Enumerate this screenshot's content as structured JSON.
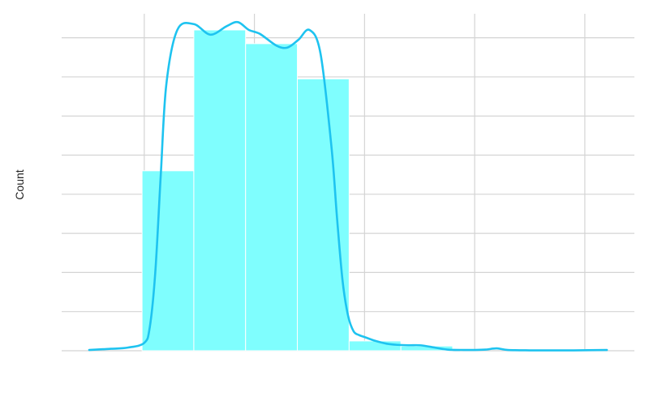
{
  "chart_data": {
    "type": "bar",
    "title": "",
    "xlabel": "",
    "ylabel": "Count",
    "x_ticks": [
      0,
      1,
      2,
      3,
      4
    ],
    "xlim": [
      -0.75,
      4.45
    ],
    "y_gridlines": [
      0,
      1,
      2,
      3,
      4,
      5,
      6,
      7,
      8
    ],
    "ylim": [
      0,
      8.8
    ],
    "grid": true,
    "bars": [
      {
        "x0": -0.02,
        "x1": 0.45,
        "value": 4.6
      },
      {
        "x0": 0.45,
        "x1": 0.92,
        "value": 8.2
      },
      {
        "x0": 0.92,
        "x1": 1.39,
        "value": 7.85
      },
      {
        "x0": 1.39,
        "x1": 1.86,
        "value": 6.95
      },
      {
        "x0": 1.86,
        "x1": 2.33,
        "value": 0.25
      },
      {
        "x0": 2.33,
        "x1": 2.8,
        "value": 0.12
      }
    ],
    "kde": {
      "x": [
        -0.5,
        -0.3,
        -0.15,
        0.0,
        0.05,
        0.1,
        0.15,
        0.2,
        0.3,
        0.45,
        0.6,
        0.75,
        0.85,
        0.95,
        1.05,
        1.2,
        1.3,
        1.4,
        1.5,
        1.6,
        1.7,
        1.75,
        1.8,
        1.85,
        1.9,
        1.95,
        2.0,
        2.1,
        2.2,
        2.3,
        2.4,
        2.5,
        2.6,
        2.75,
        2.9,
        3.0,
        3.1,
        3.2,
        3.3,
        3.5,
        3.7,
        3.9,
        4.2
      ],
      "y": [
        0.02,
        0.05,
        0.08,
        0.2,
        0.6,
        2.0,
        4.5,
        6.8,
        8.2,
        8.35,
        8.08,
        8.3,
        8.4,
        8.2,
        8.1,
        7.8,
        7.75,
        7.95,
        8.2,
        7.6,
        5.2,
        3.4,
        1.8,
        0.9,
        0.5,
        0.4,
        0.35,
        0.25,
        0.18,
        0.15,
        0.14,
        0.14,
        0.1,
        0.03,
        0.02,
        0.02,
        0.03,
        0.06,
        0.02,
        0.01,
        0.01,
        0.01,
        0.02
      ]
    },
    "colors": {
      "bar_fill": "#7ffefe",
      "bar_stroke": "#ffffff",
      "kde_line": "#1ec3f0",
      "grid": "#d4d4d4",
      "background": "#ffffff"
    }
  }
}
